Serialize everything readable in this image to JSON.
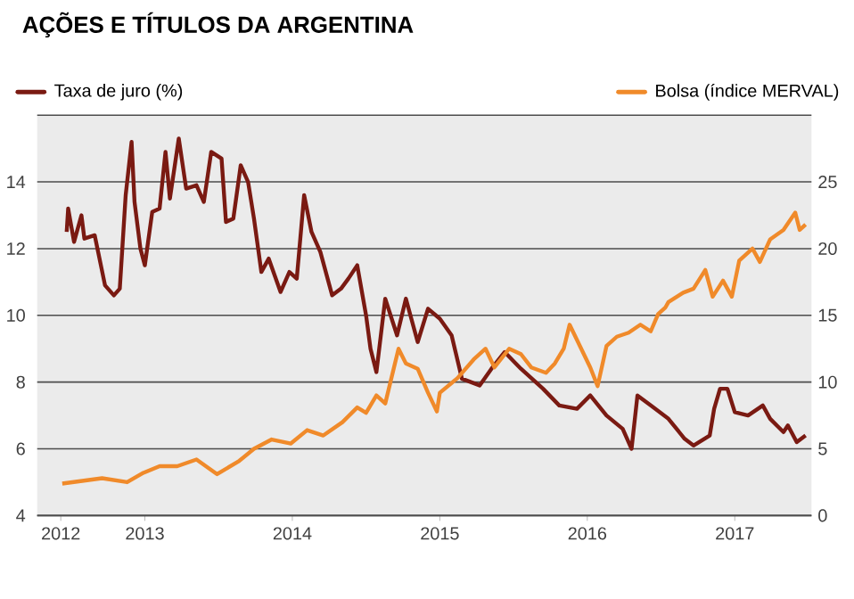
{
  "chart_data": {
    "type": "line",
    "title": "AÇÕES E TÍTULOS DA ARGENTINA",
    "legend": "top",
    "grid": "y",
    "line_style": "solid",
    "xlim": [
      2012.27,
      2017.52
    ],
    "xticks": [
      {
        "value": 2012.43,
        "label": "2012"
      },
      {
        "value": 2013,
        "label": "2013"
      },
      {
        "value": 2014,
        "label": "2014"
      },
      {
        "value": 2015,
        "label": "2015"
      },
      {
        "value": 2016,
        "label": "2016"
      },
      {
        "value": 2017,
        "label": "2017"
      }
    ],
    "ylim": [
      4,
      16
    ],
    "yticks": [
      4,
      6,
      8,
      10,
      12,
      14,
      {
        "value": 16,
        "label": null
      }
    ],
    "y2lim": [
      0,
      30
    ],
    "y2ticks": [
      0,
      5,
      10,
      15,
      20,
      25
    ],
    "series": [
      {
        "name": "Taxa de juro (%)",
        "color": "#7a1a12",
        "x": [
          2012.47,
          2012.48,
          2012.52,
          2012.57,
          2012.59,
          2012.66,
          2012.73,
          2012.79,
          2012.83,
          2012.87,
          2012.91,
          2012.93,
          2012.97,
          2013.0,
          2013.05,
          2013.1,
          2013.14,
          2013.17,
          2013.23,
          2013.28,
          2013.35,
          2013.4,
          2013.45,
          2013.52,
          2013.55,
          2013.6,
          2013.65,
          2013.7,
          2013.74,
          2013.79,
          2013.84,
          2013.92,
          2013.98,
          2014.03,
          2014.08,
          2014.13,
          2014.19,
          2014.27,
          2014.33,
          2014.38,
          2014.44,
          2014.5,
          2014.53,
          2014.57,
          2014.63,
          2014.71,
          2014.77,
          2014.85,
          2014.92,
          2015.0,
          2015.08,
          2015.15,
          2015.27,
          2015.35,
          2015.44,
          2015.55,
          2015.7,
          2015.81,
          2015.93,
          2016.02,
          2016.13,
          2016.24,
          2016.3,
          2016.34,
          2016.43,
          2016.55,
          2016.66,
          2016.72,
          2016.83,
          2016.86,
          2016.9,
          2016.95,
          2017.0,
          2017.09,
          2017.19,
          2017.24,
          2017.33,
          2017.36,
          2017.42,
          2017.48
        ],
        "values": [
          12.5,
          13.2,
          12.2,
          13.0,
          12.3,
          12.4,
          10.9,
          10.6,
          10.8,
          13.6,
          15.2,
          13.4,
          12.0,
          11.5,
          13.1,
          13.2,
          14.9,
          13.5,
          15.3,
          13.8,
          13.9,
          13.4,
          14.9,
          14.7,
          12.8,
          12.9,
          14.5,
          14.0,
          12.9,
          11.3,
          11.7,
          10.7,
          11.3,
          11.1,
          13.6,
          12.5,
          11.9,
          10.6,
          10.8,
          11.1,
          11.5,
          10.0,
          9.0,
          8.3,
          10.5,
          9.4,
          10.5,
          9.2,
          10.2,
          9.9,
          9.4,
          8.1,
          7.9,
          8.4,
          8.9,
          8.4,
          7.8,
          7.3,
          7.2,
          7.6,
          7.0,
          6.6,
          6.0,
          7.6,
          7.3,
          6.9,
          6.3,
          6.1,
          6.4,
          7.2,
          7.8,
          7.8,
          7.1,
          7.0,
          7.3,
          6.9,
          6.5,
          6.7,
          6.2,
          6.4
        ]
      },
      {
        "name": "Bolsa (índice MERVAL)",
        "color": "#f08a2a",
        "axis": "y2",
        "x": [
          2012.44,
          2012.71,
          2012.88,
          2012.99,
          2013.1,
          2013.22,
          2013.35,
          2013.49,
          2013.64,
          2013.74,
          2013.86,
          2013.99,
          2014.1,
          2014.21,
          2014.34,
          2014.44,
          2014.5,
          2014.57,
          2014.63,
          2014.72,
          2014.77,
          2014.85,
          2014.92,
          2014.98,
          2015.0,
          2015.12,
          2015.23,
          2015.31,
          2015.37,
          2015.47,
          2015.55,
          2015.62,
          2015.72,
          2015.78,
          2015.84,
          2015.88,
          2015.95,
          2016.02,
          2016.07,
          2016.13,
          2016.2,
          2016.28,
          2016.36,
          2016.43,
          2016.48,
          2016.53,
          2016.55,
          2016.65,
          2016.72,
          2016.8,
          2016.85,
          2016.92,
          2016.98,
          2017.03,
          2017.12,
          2017.17,
          2017.24,
          2017.33,
          2017.41,
          2017.44,
          2017.48
        ],
        "values": [
          2.4,
          2.8,
          2.5,
          3.2,
          3.7,
          3.7,
          4.2,
          3.1,
          4.1,
          5.0,
          5.7,
          5.4,
          6.4,
          6.0,
          7.0,
          8.1,
          7.7,
          9.0,
          8.4,
          12.5,
          11.4,
          11.0,
          9.2,
          7.8,
          9.2,
          10.3,
          11.7,
          12.5,
          11.1,
          12.5,
          12.1,
          11.1,
          10.7,
          11.4,
          12.5,
          14.3,
          12.7,
          11.1,
          9.7,
          12.7,
          13.4,
          13.7,
          14.3,
          13.8,
          15.1,
          15.6,
          16.0,
          16.7,
          17.0,
          18.4,
          16.4,
          17.6,
          16.4,
          19.1,
          20.0,
          19.0,
          20.7,
          21.4,
          22.7,
          21.4,
          21.8
        ]
      }
    ]
  }
}
